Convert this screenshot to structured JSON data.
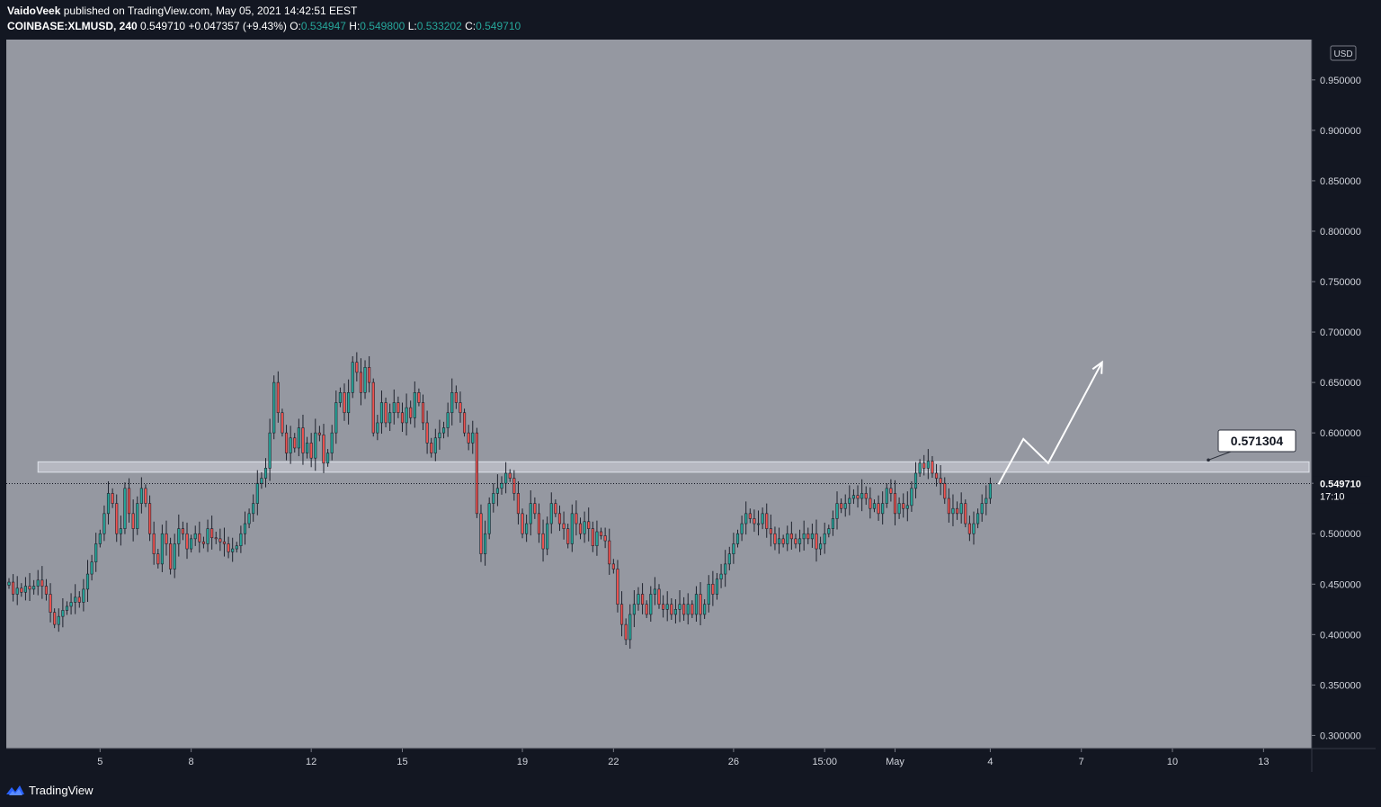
{
  "header": {
    "publisher": "VaidoVeek",
    "published_text": "published on TradingView.com, May 05, 2021 14:42:51 EEST",
    "symbol": "COINBASE:XLMUSD, 240",
    "last": "0.549710",
    "change": "+0.047357 (+9.43%)",
    "open_label": "O:",
    "open": "0.534947",
    "high_label": "H:",
    "high": "0.549800",
    "low_label": "L:",
    "low": "0.533202",
    "close_label": "C:",
    "close": "0.549710"
  },
  "footer": {
    "brand": "TradingView",
    "icon": "tradingview-logo-icon"
  },
  "colors": {
    "background": "#131722",
    "plot": "#9598a1",
    "up": "#26a69a",
    "down": "#ef5350",
    "zone": "#d1d4dc",
    "drawing": "#ffffff"
  },
  "chart_data": {
    "type": "candlestick",
    "currency": "USD",
    "y_ticks": [
      "0.950000",
      "0.900000",
      "0.850000",
      "0.800000",
      "0.750000",
      "0.700000",
      "0.650000",
      "0.600000",
      "0.550000",
      "0.500000",
      "0.450000",
      "0.400000",
      "0.350000",
      "0.300000"
    ],
    "y_tick_values": [
      0.95,
      0.9,
      0.85,
      0.8,
      0.75,
      0.7,
      0.65,
      0.6,
      0.55,
      0.5,
      0.45,
      0.4,
      0.35,
      0.3
    ],
    "ylim": [
      0.287,
      0.99
    ],
    "x_ticks": [
      "5",
      "8",
      "12",
      "15",
      "19",
      "22",
      "26",
      "15:00",
      "May",
      "4",
      "7",
      "10",
      "13"
    ],
    "x_tick_index": [
      22,
      44,
      73,
      95,
      124,
      146,
      175,
      197,
      214,
      237,
      259,
      281,
      303
    ],
    "x_index_range": [
      0,
      314
    ],
    "last_price": 0.54971,
    "last_price_label": "0.549710",
    "countdown": "17:10",
    "resistance_zone": [
      0.561,
      0.571304
    ],
    "resistance_label": "0.571304",
    "projection": [
      [
        239,
        0.549
      ],
      [
        245,
        0.594
      ],
      [
        251,
        0.57
      ],
      [
        264,
        0.67
      ]
    ],
    "closes": [
      0.452,
      0.44,
      0.446,
      0.442,
      0.448,
      0.445,
      0.448,
      0.454,
      0.448,
      0.44,
      0.422,
      0.41,
      0.418,
      0.424,
      0.428,
      0.432,
      0.437,
      0.432,
      0.445,
      0.46,
      0.472,
      0.49,
      0.5,
      0.52,
      0.54,
      0.53,
      0.5,
      0.505,
      0.545,
      0.52,
      0.505,
      0.53,
      0.545,
      0.53,
      0.5,
      0.48,
      0.47,
      0.5,
      0.49,
      0.465,
      0.49,
      0.505,
      0.5,
      0.485,
      0.495,
      0.5,
      0.492,
      0.49,
      0.505,
      0.496,
      0.495,
      0.492,
      0.49,
      0.482,
      0.485,
      0.488,
      0.5,
      0.51,
      0.52,
      0.53,
      0.55,
      0.555,
      0.565,
      0.6,
      0.65,
      0.62,
      0.6,
      0.58,
      0.595,
      0.585,
      0.605,
      0.58,
      0.59,
      0.575,
      0.6,
      0.598,
      0.57,
      0.58,
      0.6,
      0.63,
      0.64,
      0.62,
      0.64,
      0.67,
      0.66,
      0.64,
      0.665,
      0.65,
      0.6,
      0.61,
      0.63,
      0.61,
      0.62,
      0.63,
      0.62,
      0.61,
      0.625,
      0.615,
      0.64,
      0.63,
      0.61,
      0.59,
      0.58,
      0.595,
      0.6,
      0.605,
      0.62,
      0.64,
      0.63,
      0.62,
      0.6,
      0.59,
      0.6,
      0.52,
      0.48,
      0.5,
      0.53,
      0.54,
      0.545,
      0.55,
      0.56,
      0.555,
      0.54,
      0.52,
      0.5,
      0.51,
      0.53,
      0.52,
      0.5,
      0.485,
      0.51,
      0.53,
      0.52,
      0.51,
      0.505,
      0.49,
      0.52,
      0.51,
      0.5,
      0.512,
      0.505,
      0.488,
      0.502,
      0.498,
      0.493,
      0.47,
      0.465,
      0.43,
      0.41,
      0.395,
      0.42,
      0.43,
      0.44,
      0.43,
      0.42,
      0.44,
      0.445,
      0.43,
      0.425,
      0.43,
      0.42,
      0.425,
      0.43,
      0.42,
      0.43,
      0.42,
      0.44,
      0.42,
      0.43,
      0.45,
      0.44,
      0.455,
      0.46,
      0.47,
      0.48,
      0.49,
      0.5,
      0.51,
      0.52,
      0.515,
      0.51,
      0.51,
      0.52,
      0.505,
      0.5,
      0.49,
      0.495,
      0.49,
      0.5,
      0.495,
      0.49,
      0.495,
      0.5,
      0.495,
      0.5,
      0.485,
      0.49,
      0.5,
      0.505,
      0.515,
      0.53,
      0.525,
      0.53,
      0.535,
      0.538,
      0.535,
      0.54,
      0.535,
      0.525,
      0.53,
      0.52,
      0.53,
      0.545,
      0.54,
      0.52,
      0.53,
      0.525,
      0.528,
      0.545,
      0.56,
      0.57,
      0.565,
      0.572,
      0.56,
      0.555,
      0.55,
      0.535,
      0.52,
      0.525,
      0.52,
      0.53,
      0.51,
      0.5,
      0.51,
      0.52,
      0.53,
      0.535,
      0.5497
    ]
  }
}
